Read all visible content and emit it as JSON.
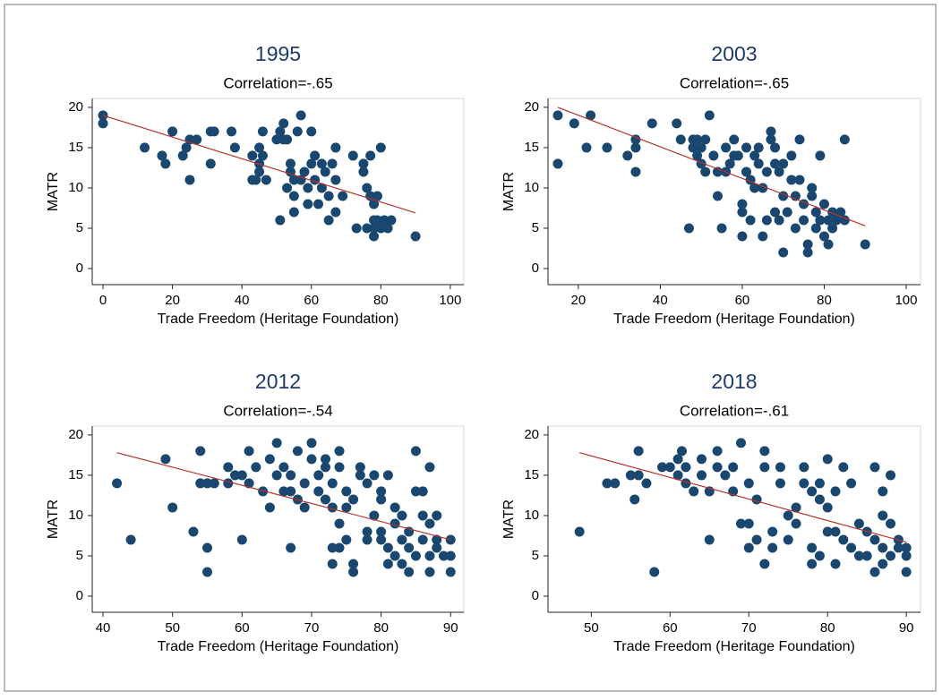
{
  "chart_data": [
    {
      "type": "scatter",
      "title": "1995",
      "subtitle": "Correlation=-.65",
      "xlabel": "Trade Freedom (Heritage Foundation)",
      "ylabel": "MATR",
      "color": "#1a476f",
      "x": [
        0,
        0,
        12,
        17,
        18,
        20,
        23,
        24,
        25,
        25,
        27,
        31,
        31,
        32,
        37,
        38,
        43,
        43,
        44,
        45,
        45,
        45,
        46,
        46,
        47,
        50,
        51,
        51,
        52,
        52,
        53,
        53,
        54,
        54,
        55,
        55,
        55,
        56,
        57,
        57,
        58,
        59,
        59,
        60,
        60,
        61,
        61,
        62,
        63,
        63,
        64,
        65,
        65,
        66,
        67,
        67,
        67,
        69,
        72,
        73,
        75,
        75,
        76,
        76,
        77,
        77,
        78,
        78,
        78,
        78,
        79,
        79,
        80,
        80,
        81,
        82,
        83,
        90
      ],
      "y": [
        19,
        18,
        15,
        14,
        13,
        17,
        14,
        15,
        11,
        16,
        16,
        17,
        13,
        17,
        17,
        15,
        14,
        11,
        11,
        15,
        13,
        12,
        17,
        14,
        11,
        16,
        6,
        17,
        16,
        18,
        10,
        16,
        13,
        12,
        9,
        7,
        11,
        17,
        19,
        11,
        12,
        10,
        8,
        13,
        17,
        14,
        11,
        8,
        10,
        13,
        12,
        6,
        9,
        13,
        15,
        11,
        7,
        9,
        14,
        5,
        13,
        12,
        5,
        10,
        9,
        14,
        6,
        8,
        4,
        5,
        6,
        9,
        15,
        5,
        6,
        5,
        6,
        4
      ],
      "fit": {
        "x": [
          0,
          90
        ],
        "y": [
          19,
          6.9
        ],
        "color": "#b5332e"
      },
      "xlim": [
        -3.1,
        103.9
      ],
      "ylim": [
        -2,
        21.1
      ],
      "xticks": [
        0,
        20,
        40,
        60,
        80,
        100
      ],
      "yticks": [
        0,
        5,
        10,
        15,
        20
      ]
    },
    {
      "type": "scatter",
      "title": "2003",
      "subtitle": "Correlation=-.65",
      "xlabel": "Trade Freedom (Heritage Foundation)",
      "ylabel": "MATR",
      "color": "#1a476f",
      "x": [
        15,
        15,
        19,
        22,
        23,
        27,
        32,
        34,
        34,
        34,
        38,
        44,
        45,
        47,
        48,
        48,
        49,
        49,
        50,
        50,
        51,
        51,
        52,
        53,
        54,
        54,
        55,
        56,
        56,
        57,
        58,
        58,
        59,
        60,
        60,
        60,
        61,
        61,
        62,
        62,
        63,
        63,
        64,
        64,
        65,
        65,
        66,
        66,
        67,
        67,
        68,
        68,
        68,
        69,
        69,
        70,
        70,
        70,
        71,
        72,
        72,
        73,
        73,
        74,
        74,
        75,
        75,
        76,
        76,
        77,
        77,
        78,
        78,
        79,
        79,
        80,
        80,
        81,
        81,
        82,
        82,
        83,
        84,
        85,
        85,
        90
      ],
      "y": [
        19,
        13,
        18,
        15,
        19,
        15,
        14,
        16,
        15,
        12,
        18,
        18,
        16,
        5,
        15,
        16,
        14,
        16,
        15,
        13,
        12,
        16,
        19,
        14,
        12,
        9,
        5,
        15,
        12,
        13,
        16,
        14,
        14,
        8,
        7,
        4,
        12,
        15,
        11,
        6,
        10,
        14,
        13,
        15,
        10,
        4,
        6,
        12,
        17,
        16,
        15,
        13,
        7,
        6,
        12,
        2,
        13,
        9,
        7,
        14,
        11,
        5,
        9,
        16,
        11,
        6,
        8,
        3,
        2,
        10,
        9,
        5,
        7,
        6,
        14,
        8,
        4,
        3,
        6,
        5,
        7,
        6,
        7,
        16,
        6,
        3
      ],
      "fit": {
        "x": [
          15,
          90
        ],
        "y": [
          20,
          5.3
        ],
        "color": "#b5332e"
      },
      "xlim": [
        12.6,
        103.5
      ],
      "ylim": [
        -2,
        21.1
      ],
      "xticks": [
        20,
        40,
        60,
        80,
        100
      ],
      "yticks": [
        0,
        5,
        10,
        15,
        20
      ]
    },
    {
      "type": "scatter",
      "title": "2012",
      "subtitle": "Correlation=-.54",
      "xlabel": "Trade Freedom (Heritage Foundation)",
      "ylabel": "MATR",
      "color": "#1a476f",
      "x": [
        42,
        44,
        49,
        50,
        53,
        54,
        54,
        55,
        55,
        55,
        56,
        58,
        58,
        59,
        60,
        60,
        61,
        61,
        62,
        63,
        64,
        64,
        65,
        65,
        66,
        66,
        67,
        67,
        67,
        68,
        68,
        69,
        69,
        70,
        70,
        71,
        71,
        72,
        72,
        72,
        73,
        73,
        73,
        73,
        74,
        74,
        74,
        74,
        75,
        75,
        75,
        76,
        76,
        76,
        77,
        77,
        78,
        78,
        78,
        79,
        79,
        80,
        80,
        80,
        80,
        81,
        81,
        81,
        82,
        82,
        82,
        83,
        83,
        83,
        84,
        84,
        84,
        85,
        85,
        85,
        86,
        86,
        86,
        87,
        87,
        87,
        87,
        88,
        88,
        88,
        89,
        90,
        90,
        90
      ],
      "y": [
        14,
        7,
        17,
        11,
        8,
        18,
        14,
        6,
        14,
        3,
        14,
        14,
        16,
        15,
        15,
        7,
        18,
        14,
        16,
        13,
        11,
        17,
        15,
        19,
        13,
        16,
        15,
        13,
        6,
        18,
        12,
        11,
        14,
        19,
        17,
        15,
        13,
        16,
        17,
        12,
        14,
        11,
        6,
        4,
        18,
        16,
        9,
        6,
        13,
        11,
        7,
        3,
        4,
        12,
        16,
        15,
        8,
        7,
        14,
        15,
        10,
        12,
        13,
        8,
        7,
        15,
        6,
        4,
        11,
        5,
        9,
        10,
        7,
        4,
        6,
        8,
        3,
        18,
        13,
        5,
        13,
        10,
        7,
        16,
        9,
        5,
        3,
        10,
        7,
        6,
        5,
        7,
        5,
        3
      ],
      "fit": {
        "x": [
          42,
          90
        ],
        "y": [
          17.8,
          7
        ],
        "color": "#b5332e"
      },
      "xlim": [
        38.45,
        91.9
      ],
      "ylim": [
        -2,
        21.1
      ],
      "xticks": [
        40,
        50,
        60,
        70,
        80,
        90
      ],
      "yticks": [
        0,
        5,
        10,
        15,
        20
      ]
    },
    {
      "type": "scatter",
      "title": "2018",
      "subtitle": "Correlation=-.61",
      "xlabel": "Trade Freedom (Heritage Foundation)",
      "ylabel": "MATR",
      "color": "#1a476f",
      "x": [
        48.5,
        52,
        53,
        55,
        55.5,
        56,
        56,
        57,
        58,
        59,
        60,
        61,
        61,
        61.5,
        62,
        62,
        63,
        64,
        64,
        65,
        65,
        66,
        66,
        67,
        68,
        68,
        69,
        69,
        70,
        70,
        70,
        71,
        71,
        72,
        72,
        72,
        73,
        73,
        74,
        74,
        75,
        75,
        76,
        76,
        77,
        77,
        78,
        78,
        78,
        79,
        79,
        79,
        80,
        80,
        80,
        81,
        81,
        81,
        82,
        82,
        83,
        83,
        84,
        84,
        85,
        85,
        86,
        86,
        86,
        87,
        87,
        87,
        87,
        88,
        88,
        88,
        89,
        89,
        90,
        90,
        90
      ],
      "y": [
        8,
        14,
        14,
        15,
        12,
        18,
        15,
        14,
        3,
        16,
        16,
        15,
        17,
        18,
        14,
        16,
        13,
        15,
        17,
        7,
        13,
        16,
        18,
        15,
        16,
        13,
        19,
        9,
        6,
        14,
        9,
        12,
        7,
        16,
        4,
        18,
        8,
        6,
        16,
        14,
        10,
        7,
        11,
        9,
        14,
        16,
        13,
        6,
        4,
        14,
        12,
        5,
        11,
        8,
        17,
        13,
        8,
        4,
        16,
        7,
        14,
        6,
        9,
        5,
        8,
        5,
        16,
        3,
        7,
        10,
        6,
        4,
        13,
        15,
        9,
        5,
        7,
        6,
        6,
        3,
        5
      ],
      "fit": {
        "x": [
          48.5,
          90
        ],
        "y": [
          17.8,
          6.7
        ],
        "color": "#b5332e"
      },
      "xlim": [
        44.5,
        91.8
      ],
      "ylim": [
        -2,
        21.1
      ],
      "xticks": [
        50,
        60,
        70,
        80,
        90
      ],
      "yticks": [
        0,
        5,
        10,
        15,
        20
      ]
    }
  ]
}
